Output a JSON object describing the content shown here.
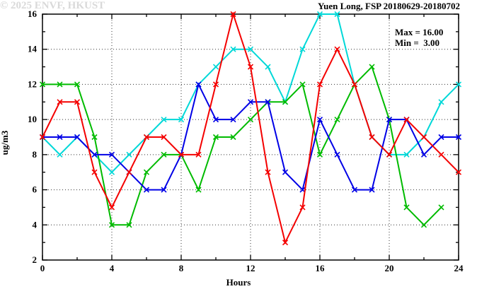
{
  "title": "Yuen Long, FSP 20180629-20180702",
  "legend": {
    "max_label": "Max = 16.00",
    "min_label": "Min =  3.00"
  },
  "watermark": "© 2025 ENVF, HKUST",
  "chart_data": {
    "type": "line",
    "title": "Yuen Long, FSP 20180629-20180702",
    "xlabel": "Hours",
    "ylabel": "ug/m3",
    "xlim": [
      0,
      24
    ],
    "ylim": [
      2,
      16
    ],
    "x_major_ticks": [
      0,
      4,
      8,
      12,
      16,
      20,
      24
    ],
    "x_minor_ticks": [
      2,
      6,
      10,
      14,
      18,
      22
    ],
    "y_major_ticks": [
      2,
      4,
      6,
      8,
      10,
      12,
      14,
      16
    ],
    "y_minor_ticks": [
      3,
      5,
      7,
      9,
      11,
      13,
      15
    ],
    "grid_x": [
      4,
      8,
      12,
      16,
      20
    ],
    "grid_y": [
      4,
      6,
      8,
      10,
      12,
      14
    ],
    "grid_style": "dotted",
    "legend_position": "top-right-inside",
    "stats": {
      "max": 16.0,
      "min": 3.0
    },
    "series": [
      {
        "name": "cyan-series",
        "color": "#00d8d8",
        "x": [
          0,
          1,
          2,
          3,
          4,
          5,
          6,
          7,
          8,
          9,
          10,
          11,
          12,
          13,
          14,
          15,
          16,
          17,
          18,
          19,
          20,
          21,
          22,
          23,
          24
        ],
        "values": [
          9,
          8,
          9,
          8,
          7,
          8,
          9,
          10,
          10,
          12,
          13,
          14,
          14,
          13,
          11,
          14,
          16,
          16,
          12,
          9,
          8,
          8,
          9,
          11,
          12
        ]
      },
      {
        "name": "green-series",
        "color": "#00bb00",
        "x": [
          0,
          1,
          2,
          3,
          4,
          5,
          6,
          7,
          8,
          9,
          10,
          11,
          12,
          13,
          14,
          15,
          16,
          17,
          18,
          19,
          20,
          21,
          22,
          23
        ],
        "values": [
          12,
          12,
          12,
          9,
          4,
          4,
          7,
          8,
          8,
          6,
          9,
          9,
          10,
          11,
          11,
          12,
          8,
          10,
          12,
          13,
          10,
          5,
          4,
          5
        ]
      },
      {
        "name": "blue-series",
        "color": "#0000e6",
        "x": [
          0,
          1,
          2,
          3,
          4,
          5,
          6,
          7,
          8,
          9,
          10,
          11,
          12,
          13,
          14,
          15,
          16,
          17,
          18,
          19,
          20,
          21,
          22,
          23,
          24
        ],
        "values": [
          9,
          9,
          9,
          8,
          8,
          7,
          6,
          6,
          8,
          12,
          10,
          10,
          11,
          11,
          7,
          6,
          10,
          8,
          6,
          6,
          10,
          10,
          8,
          9,
          9
        ]
      },
      {
        "name": "red-series",
        "color": "#f40000",
        "x": [
          0,
          1,
          2,
          3,
          4,
          5,
          6,
          7,
          8,
          9,
          10,
          11,
          12,
          13,
          14,
          15,
          16,
          17,
          18,
          19,
          20,
          21,
          22,
          23,
          24
        ],
        "values": [
          9,
          11,
          11,
          7,
          5,
          7,
          9,
          9,
          8,
          8,
          12,
          16,
          13,
          7,
          3,
          5,
          12,
          14,
          12,
          9,
          8,
          10,
          9,
          8,
          7
        ]
      }
    ]
  }
}
